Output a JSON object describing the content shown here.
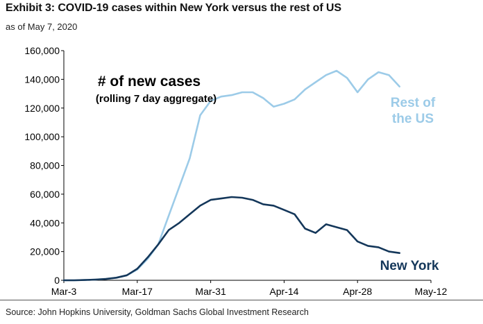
{
  "title": "Exhibit 3: COVID-19 cases within New York versus the rest of US",
  "subtitle": "as of May 7, 2020",
  "source": "Source: John Hopkins University, Goldman Sachs Global Investment Research",
  "colors": {
    "rest_of_us": "#9ccbe8",
    "new_york": "#14375a",
    "axis": "#000000"
  },
  "chart_data": {
    "type": "line",
    "title": "# of new cases",
    "subtitle": "(rolling 7 day aggregate)",
    "xlabel": "",
    "ylabel": "",
    "ylim": [
      0,
      160000
    ],
    "y_ticks": [
      0,
      20000,
      40000,
      60000,
      80000,
      100000,
      120000,
      140000,
      160000
    ],
    "y_tick_labels": [
      "0",
      "20,000",
      "40,000",
      "60,000",
      "80,000",
      "100,000",
      "120,000",
      "140,000",
      "160,000"
    ],
    "x_range_days": [
      0,
      70
    ],
    "x_ticks": [
      0,
      14,
      28,
      42,
      56,
      70
    ],
    "x_tick_labels": [
      "Mar-3",
      "Mar-17",
      "Mar-31",
      "Apr-14",
      "Apr-28",
      "May-12"
    ],
    "series": [
      {
        "name": "Rest of the US",
        "label_lines": [
          "Rest of",
          "the US"
        ],
        "x": [
          0,
          2,
          4,
          6,
          8,
          10,
          12,
          14,
          16,
          18,
          20,
          22,
          24,
          26,
          28,
          30,
          32,
          34,
          36,
          38,
          40,
          42,
          44,
          46,
          48,
          50,
          52,
          54,
          56,
          58,
          60,
          62,
          64
        ],
        "y": [
          0,
          0,
          200,
          500,
          900,
          1800,
          3500,
          7500,
          15000,
          25000,
          45000,
          65000,
          85000,
          115000,
          125000,
          128000,
          129000,
          131000,
          131000,
          127000,
          121000,
          123000,
          126000,
          133000,
          138000,
          143000,
          146000,
          141000,
          131000,
          140000,
          145000,
          143000,
          135000
        ]
      },
      {
        "name": "New York",
        "label_lines": [
          "New York"
        ],
        "x": [
          0,
          2,
          4,
          6,
          8,
          10,
          12,
          14,
          16,
          18,
          20,
          22,
          24,
          26,
          28,
          30,
          32,
          34,
          36,
          38,
          40,
          42,
          44,
          46,
          48,
          50,
          52,
          54,
          56,
          58,
          60,
          62,
          64
        ],
        "y": [
          0,
          0,
          200,
          500,
          900,
          1800,
          3500,
          8000,
          16000,
          25000,
          35000,
          40000,
          46000,
          52000,
          56000,
          57000,
          58000,
          57500,
          56000,
          53000,
          52000,
          49000,
          46000,
          36000,
          33000,
          39000,
          37000,
          35000,
          27000,
          24000,
          23000,
          20000,
          19000
        ]
      }
    ]
  }
}
